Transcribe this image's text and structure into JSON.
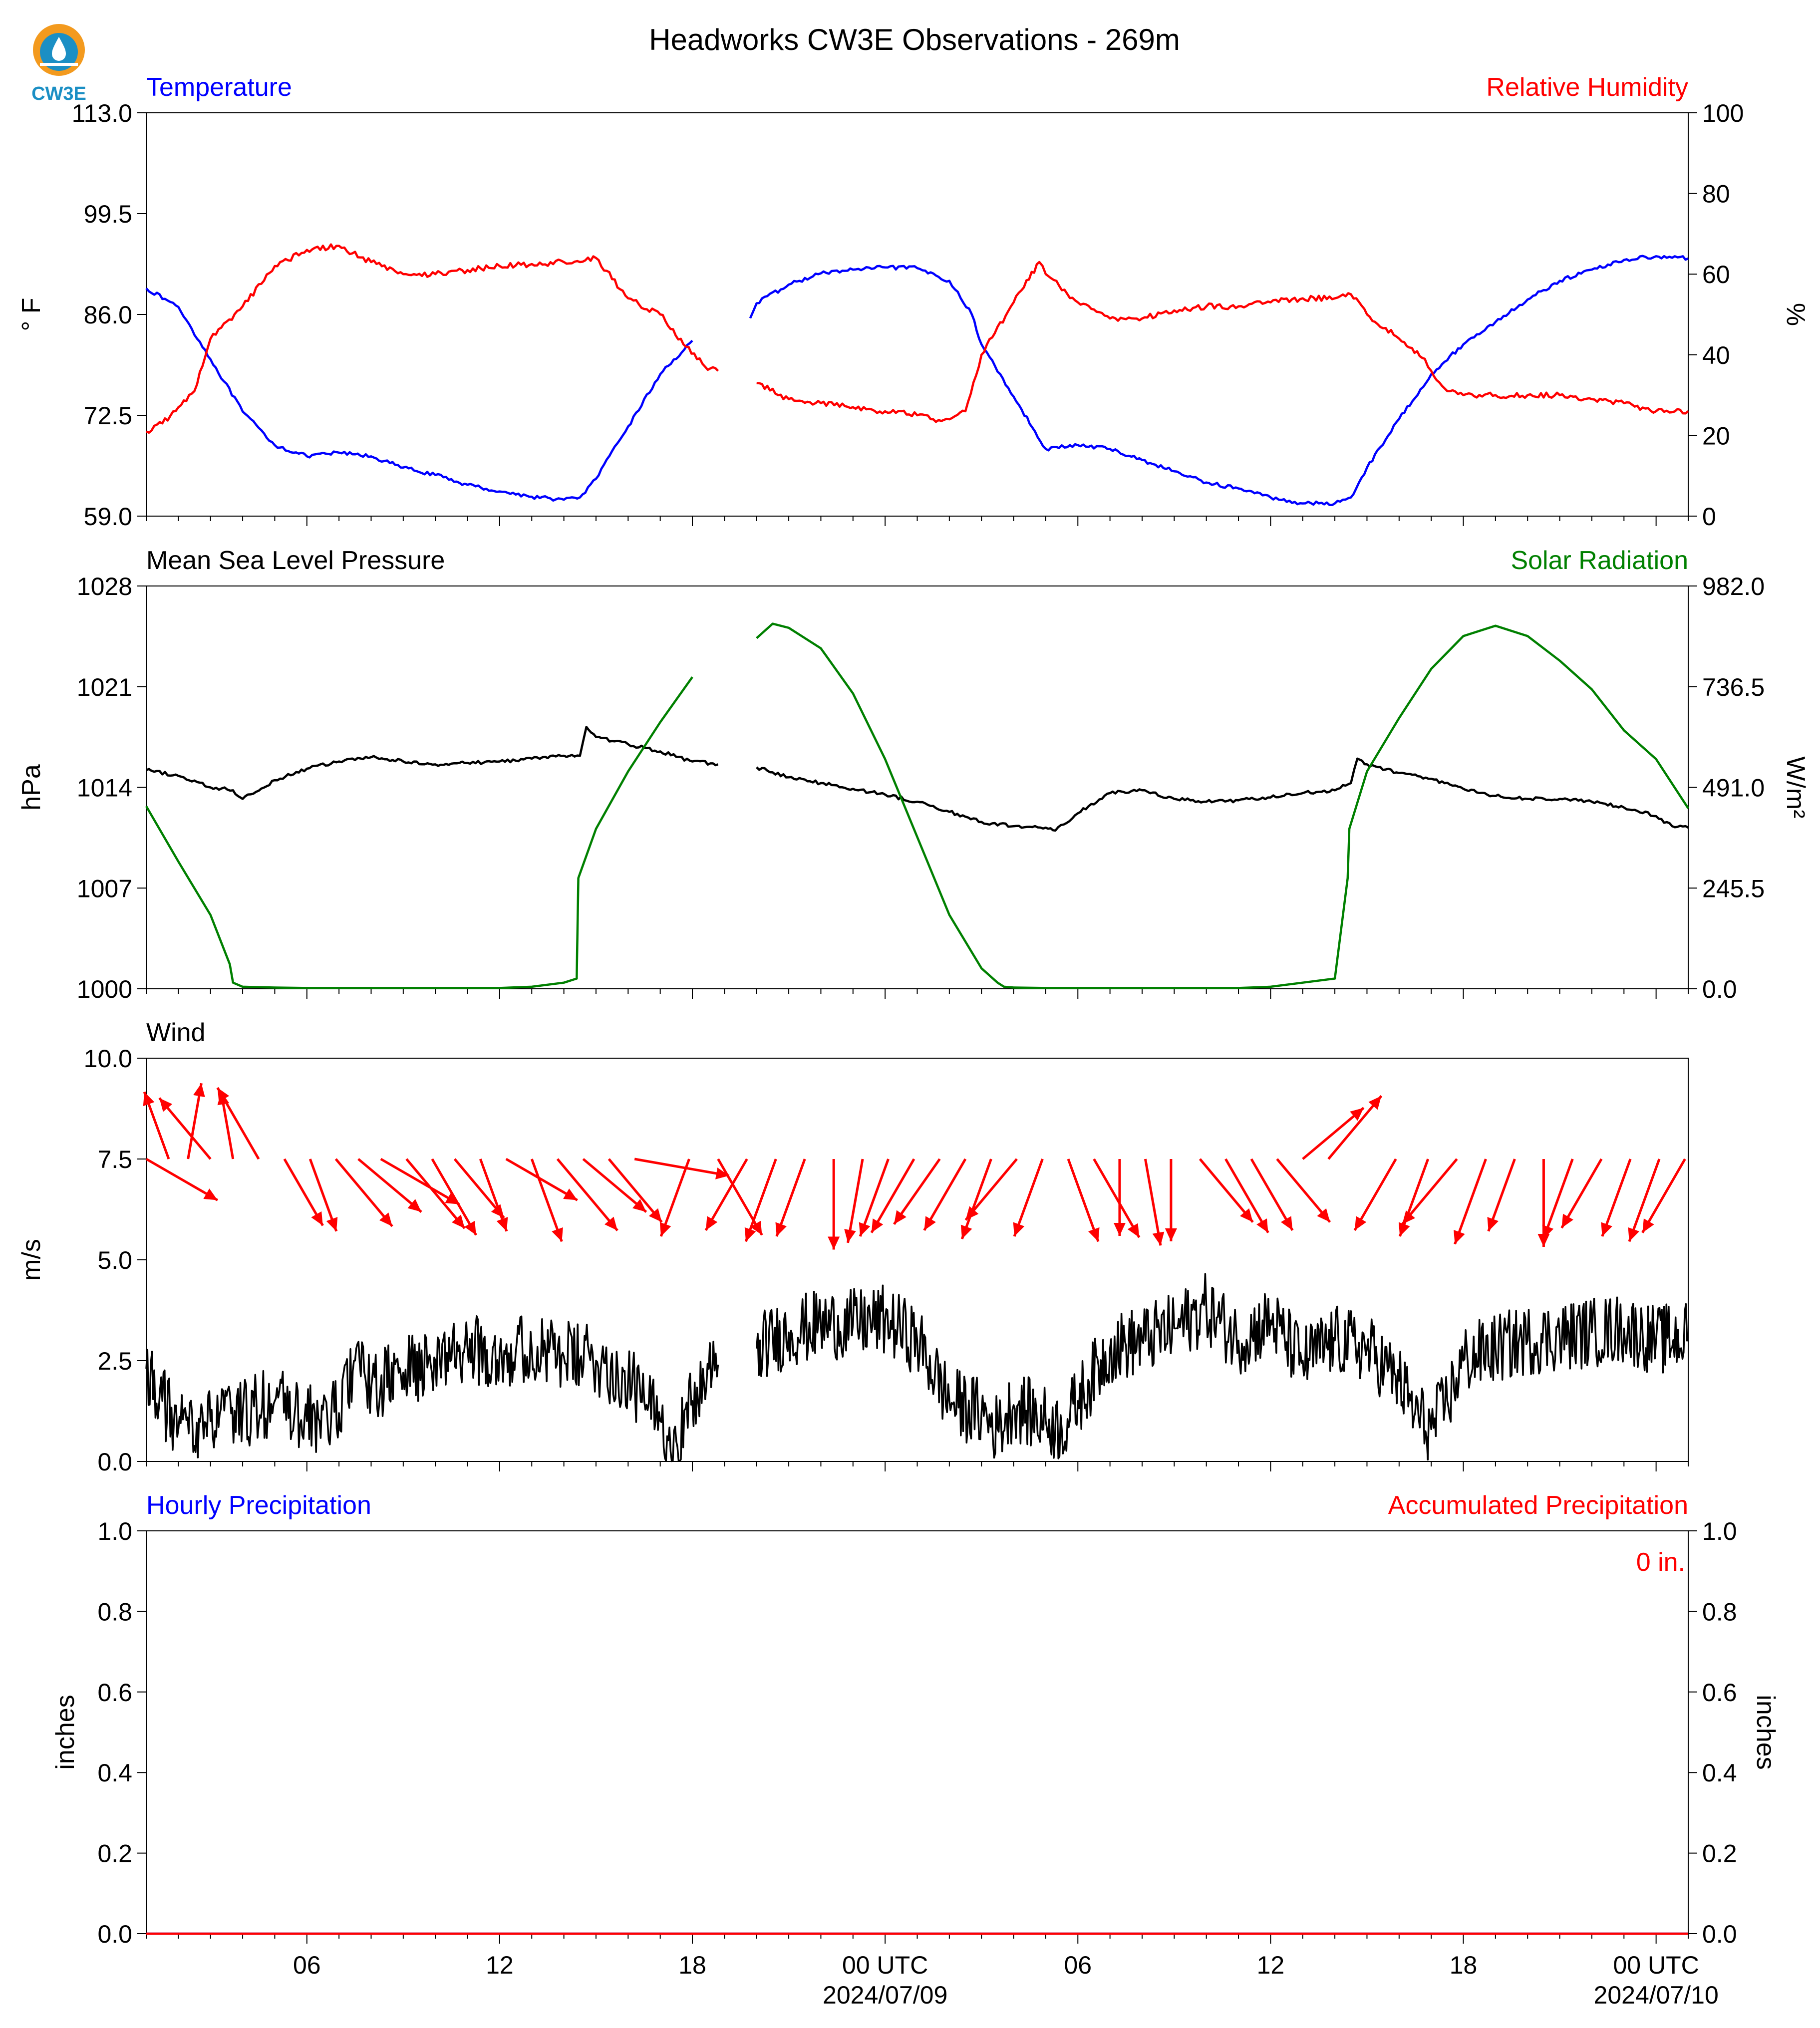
{
  "title": "Headworks CW3E Observations - 269m",
  "logo_text": "CW3E",
  "colors": {
    "temperature": "#0000ff",
    "humidity": "#ff0000",
    "pressure": "#000000",
    "solar": "#008000",
    "wind_arrows": "#ff0000",
    "wind_speed": "#000000",
    "hourly_precip": "#0000ff",
    "accum_precip": "#ff0000",
    "logo_orange": "#f39a1e",
    "logo_blue": "#1b8fc4"
  },
  "x_axis": {
    "range_hours": [
      0,
      48
    ],
    "tick_labels": [
      {
        "h": 5,
        "label": "06"
      },
      {
        "h": 11,
        "label": "12"
      },
      {
        "h": 17,
        "label": "18"
      },
      {
        "h": 23,
        "label": "00 UTC",
        "sublabel": "2024/07/09"
      },
      {
        "h": 29,
        "label": "06"
      },
      {
        "h": 35,
        "label": "12"
      },
      {
        "h": 41,
        "label": "18"
      },
      {
        "h": 47,
        "label": "00 UTC",
        "sublabel": "2024/07/10"
      }
    ]
  },
  "chart_data": [
    {
      "type": "line",
      "title_left": "Temperature",
      "title_right": "Relative Humidity",
      "ylabel_left": "$^\\circ$F",
      "ylabel_right": "%",
      "ylim_left": [
        59.0,
        113.0
      ],
      "ylim_right": [
        0,
        100
      ],
      "yticks_left": [
        "59.0",
        "72.5",
        "86.0",
        "99.5",
        "113.0"
      ],
      "yticks_right": [
        "0",
        "20",
        "40",
        "60",
        "80",
        "100"
      ],
      "series": [
        {
          "name": "Temperature",
          "axis": "left",
          "x": [
            0,
            1,
            2,
            3,
            4,
            5,
            6,
            7,
            8,
            9,
            10,
            11,
            12,
            13,
            13.5,
            14,
            15,
            16,
            17,
            17.8,
            18,
            18.8,
            19,
            20,
            21,
            22,
            23,
            24,
            25,
            25.7,
            26,
            27,
            28,
            29,
            30,
            31,
            32,
            33,
            34,
            35,
            36,
            37,
            37.5,
            38,
            39,
            40,
            41,
            42,
            43,
            44,
            45,
            46,
            47,
            48
          ],
          "y": [
            89.5,
            87,
            80,
            73,
            68.5,
            67,
            67.5,
            67,
            65.5,
            64.5,
            63.2,
            62.3,
            61.6,
            61.2,
            61.5,
            64,
            71,
            78,
            82.5,
            null,
            null,
            85.5,
            87.5,
            90,
            91.5,
            92,
            92.3,
            92.2,
            90.5,
            86,
            82,
            75,
            68,
            68.5,
            68,
            66.5,
            65,
            63.5,
            62.7,
            61.5,
            60.7,
            60.7,
            61.5,
            65.5,
            72,
            78,
            82,
            85,
            88,
            90.5,
            92,
            93.3,
            93.8,
            93.5
          ]
        },
        {
          "name": "Relative Humidity",
          "axis": "right",
          "x": [
            0,
            0.5,
            1,
            1.5,
            2,
            3,
            4,
            5,
            6,
            7,
            8,
            9,
            10,
            11,
            12,
            13,
            13.5,
            14,
            15,
            16,
            16.8,
            17.4,
            17.8,
            18,
            18.8,
            19,
            20,
            21,
            22,
            23,
            23.5,
            24,
            24.5,
            25,
            25.5,
            26,
            27,
            27.8,
            28,
            29,
            30,
            31,
            32,
            33,
            34,
            35,
            36,
            37,
            37.5,
            38,
            39,
            39.8,
            40,
            40.5,
            41,
            42,
            43,
            44,
            45,
            46,
            47,
            48
          ],
          "y": [
            21,
            23,
            27,
            31,
            44,
            52,
            62,
            66,
            67,
            63,
            60,
            60,
            61,
            62,
            62.5,
            63,
            63,
            64,
            54,
            50,
            42,
            37,
            36,
            null,
            null,
            33,
            29,
            28,
            27,
            26,
            26,
            25,
            24,
            24,
            26,
            40,
            53,
            63,
            60,
            53,
            49,
            49,
            51,
            52,
            52,
            53,
            54,
            54,
            55,
            50,
            44,
            39,
            36,
            31,
            30,
            30,
            30,
            30,
            29,
            28,
            26,
            26
          ]
        }
      ]
    },
    {
      "type": "line",
      "title_left": "Mean Sea Level Pressure",
      "title_right": "Solar Radiation",
      "ylabel_left": "hPa",
      "ylabel_right": "W/m²",
      "ylim_left": [
        1000,
        1028
      ],
      "ylim_right": [
        0.0,
        982.0
      ],
      "yticks_left": [
        "1000",
        "1007",
        "1014",
        "1021",
        "1028"
      ],
      "yticks_right": [
        "0.0",
        "245.5",
        "491.0",
        "736.5",
        "982.0"
      ],
      "series": [
        {
          "name": "Mean Sea Level Pressure",
          "axis": "left",
          "x": [
            0,
            1,
            2,
            2.7,
            3,
            4,
            5,
            6,
            7,
            8,
            9,
            10,
            11,
            12,
            13,
            13.5,
            13.7,
            14,
            15,
            16,
            17,
            17.8,
            18,
            18.8,
            19,
            20,
            21,
            22,
            23,
            24,
            25,
            26,
            27,
            28,
            28.3,
            29,
            30,
            31,
            32,
            33,
            34,
            35,
            36,
            37,
            37.5,
            37.7,
            38,
            39,
            40,
            41,
            42,
            43,
            44,
            45,
            46,
            47,
            47.5,
            48
          ],
          "y": [
            1015.2,
            1014.8,
            1014,
            1013.8,
            1013.2,
            1014.5,
            1015.3,
            1015.8,
            1016.1,
            1015.8,
            1015.6,
            1015.7,
            1015.8,
            1016,
            1016.2,
            1016.2,
            1018.2,
            1017.5,
            1017,
            1016.5,
            1015.8,
            1015.6,
            null,
            null,
            1015.4,
            1014.7,
            1014.3,
            1013.9,
            1013.5,
            1013,
            1012.3,
            1011.6,
            1011.3,
            1011.2,
            1011.0,
            1012.2,
            1013.6,
            1013.8,
            1013.2,
            1013.0,
            1013.1,
            1013.3,
            1013.6,
            1013.8,
            1014.3,
            1016.0,
            1015.6,
            1015.0,
            1014.6,
            1013.9,
            1013.4,
            1013.2,
            1013.2,
            1013.0,
            1012.6,
            1012.0,
            1011.3,
            1011.2
          ]
        },
        {
          "name": "Solar Radiation",
          "axis": "right",
          "x": [
            0,
            1,
            2,
            2.6,
            2.7,
            3,
            4,
            5,
            6,
            7,
            8,
            9,
            10,
            11,
            12,
            13,
            13.4,
            13.45,
            14,
            15,
            16,
            17,
            17.8,
            18,
            18.8,
            19,
            19.5,
            20,
            21,
            22,
            23,
            24,
            25,
            26,
            26.5,
            26.7,
            27,
            28,
            29,
            30,
            31,
            32,
            33,
            34,
            35,
            36,
            37,
            37.4,
            37.45,
            38,
            39,
            40,
            41,
            42,
            43,
            44,
            45,
            46,
            47,
            48
          ],
          "y": [
            445,
            310,
            180,
            60,
            15,
            5,
            3,
            2,
            2,
            2,
            2,
            2,
            2,
            2,
            5,
            15,
            25,
            270,
            390,
            530,
            650,
            760,
            null,
            null,
            null,
            855,
            890,
            880,
            830,
            720,
            560,
            370,
            180,
            50,
            15,
            5,
            3,
            2,
            2,
            2,
            2,
            2,
            2,
            2,
            5,
            15,
            25,
            270,
            390,
            530,
            660,
            780,
            860,
            885,
            860,
            800,
            730,
            630,
            560,
            440
          ]
        }
      ]
    },
    {
      "type": "line",
      "title_left": "Wind",
      "ylabel_left": "m/s",
      "ylim_left": [
        0.0,
        10.0
      ],
      "yticks_left": [
        "0.0",
        "2.5",
        "5.0",
        "7.5",
        "10.0"
      ],
      "series": [
        {
          "name": "Wind speed",
          "axis": "left",
          "x": [
            0,
            0.5,
            1,
            2,
            3,
            4,
            5,
            6,
            6.5,
            7,
            8,
            9,
            10,
            11,
            12,
            13,
            14,
            15,
            15.5,
            16,
            16.5,
            17,
            17.8,
            18,
            18.8,
            19,
            20,
            21,
            22,
            23,
            24,
            25,
            26,
            26.5,
            27,
            28,
            28.5,
            29,
            30,
            31,
            32,
            33,
            34,
            35,
            36,
            37,
            38,
            39,
            39.5,
            40,
            40.5,
            41,
            42,
            43,
            44,
            45,
            46,
            47,
            48
          ],
          "y": [
            2.3,
            1.5,
            0.8,
            1.0,
            1.2,
            1.5,
            1.0,
            1.2,
            2.5,
            1.8,
            2.2,
            2.5,
            2.8,
            2.7,
            2.8,
            2.6,
            2.5,
            2.0,
            1.5,
            1.0,
            0.5,
            1.5,
            2.4,
            null,
            null,
            2.8,
            3.2,
            3.4,
            3.4,
            3.5,
            3.0,
            1.5,
            1.2,
            0.8,
            1.4,
            1.0,
            0.8,
            1.5,
            2.8,
            3.0,
            3.3,
            3.8,
            3.0,
            3.5,
            2.5,
            3.0,
            2.8,
            2.0,
            1.2,
            0.8,
            1.5,
            2.5,
            2.8,
            3.0,
            3.1,
            3.2,
            3.3,
            3.0,
            3.1
          ]
        }
      ],
      "wind_arrows": {
        "base_y": 7.5,
        "x": [
          0,
          0.7,
          1.3,
          2,
          2.7,
          3.5,
          4.3,
          5.1,
          5.9,
          6.6,
          7.3,
          8.1,
          8.9,
          9.6,
          10.4,
          11.2,
          12,
          12.8,
          13.6,
          14.4,
          15.2,
          16.9,
          17.8,
          18.7,
          19.6,
          20.5,
          21.4,
          22.3,
          23.1,
          23.9,
          24.7,
          25.5,
          26.3,
          27.1,
          27.9,
          28.7,
          29.5,
          30.3,
          31.1,
          31.9,
          32.8,
          33.6,
          34.4,
          35.2,
          36,
          36.8,
          38.9,
          39.9,
          40.8,
          41.7,
          42.6,
          43.5,
          44.4,
          45.3,
          46.2,
          47.1,
          47.9
        ],
        "dir_deg": [
          330,
          110,
          80,
          130,
          100,
          120,
          300,
          290,
          310,
          320,
          330,
          310,
          300,
          310,
          290,
          330,
          290,
          310,
          320,
          310,
          350,
          250,
          300,
          240,
          250,
          250,
          270,
          260,
          250,
          240,
          235,
          240,
          250,
          230,
          250,
          290,
          300,
          270,
          280,
          270,
          310,
          300,
          300,
          310,
          40,
          50,
          240,
          250,
          230,
          250,
          250,
          270,
          250,
          240,
          250,
          250,
          240
        ],
        "speed": [
          3.0,
          2.6,
          2.8,
          2.9,
          2.5,
          3.0,
          2.8,
          2.8,
          3.2,
          3.0,
          3.3,
          3.3,
          3.2,
          2.8,
          2.8,
          3.0,
          3.2,
          3.4,
          3.0,
          3.0,
          3.5,
          3.0,
          3.2,
          3.0,
          3.2,
          3.0,
          3.3,
          3.1,
          3.0,
          3.1,
          2.9,
          3.0,
          3.1,
          2.9,
          3.0,
          3.2,
          3.3,
          2.8,
          3.2,
          3.0,
          3.0,
          3.1,
          3.0,
          3.0,
          2.9,
          3.0,
          3.0,
          3.0,
          3.1,
          3.3,
          2.8,
          3.2,
          3.1,
          2.9,
          3.0,
          3.2,
          3.1
        ]
      }
    },
    {
      "type": "line",
      "title_left": "Hourly Precipitation",
      "title_right": "Accumulated Precipitation",
      "ylabel_left": "inches",
      "ylabel_right": "inches",
      "ylim_left": [
        0.0,
        1.0
      ],
      "ylim_right": [
        0.0,
        1.0
      ],
      "yticks_left": [
        "0.0",
        "0.2",
        "0.4",
        "0.6",
        "0.8",
        "1.0"
      ],
      "yticks_right": [
        "0.0",
        "0.2",
        "0.4",
        "0.6",
        "0.8",
        "1.0"
      ],
      "annotation": "0 in.",
      "series": [
        {
          "name": "Hourly Precipitation",
          "axis": "left",
          "x": [
            0,
            48
          ],
          "y": [
            0,
            0
          ]
        },
        {
          "name": "Accumulated Precipitation",
          "axis": "right",
          "x": [
            0,
            48
          ],
          "y": [
            0,
            0
          ]
        }
      ]
    }
  ]
}
